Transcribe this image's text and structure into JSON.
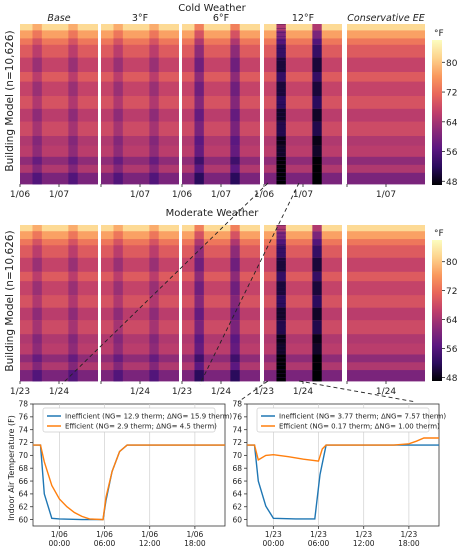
{
  "heatmaps": [
    {
      "title": "Cold Weather",
      "panels": [
        {
          "label": "Base",
          "italic": true,
          "ticks": [
            "1/06",
            "1/07"
          ]
        },
        {
          "label": "3°F",
          "italic": false,
          "ticks": [
            "",
            "1/07"
          ]
        },
        {
          "label": "6°F",
          "italic": false,
          "ticks": [
            "1/06",
            "1/07"
          ]
        },
        {
          "label": "12°F",
          "italic": false,
          "ticks": [
            "1/06",
            "1/07"
          ]
        },
        {
          "label": "Conservative EE",
          "italic": true,
          "ticks": [
            "",
            "1/07"
          ]
        }
      ]
    },
    {
      "title": "Moderate Weather",
      "panels": [
        {
          "label": "",
          "italic": false,
          "ticks": [
            "1/23",
            "1/24"
          ]
        },
        {
          "label": "",
          "italic": false,
          "ticks": [
            "",
            "1/24"
          ]
        },
        {
          "label": "",
          "italic": false,
          "ticks": [
            "1/23",
            "1/24"
          ]
        },
        {
          "label": "",
          "italic": false,
          "ticks": [
            "1/23",
            "1/24"
          ]
        },
        {
          "label": "",
          "italic": false,
          "ticks": [
            "",
            "1/24"
          ]
        }
      ]
    }
  ],
  "ylabel": "Building Model (n=10,626)",
  "colorbar": {
    "unit": "°F",
    "ticks": [
      48,
      56,
      64,
      72,
      80
    ],
    "range": [
      47,
      86
    ],
    "stops": [
      "#000004",
      "#2a0b5c",
      "#5a1780",
      "#8a2a78",
      "#c03f6b",
      "#e8665a",
      "#f9985d",
      "#fdd28c",
      "#fcfdbf"
    ]
  },
  "chart_data": [
    {
      "type": "line",
      "panel": "cold-detail",
      "xlabel": "",
      "ylabel": "Indoor Air Temperature (F)",
      "ylim": [
        59,
        78
      ],
      "yticks": [
        60,
        62,
        64,
        66,
        68,
        70,
        72,
        74,
        76,
        78
      ],
      "xlim": [
        -3.5,
        22
      ],
      "xticks": [
        {
          "value": 0,
          "label": "1/06\n00:00"
        },
        {
          "value": 6,
          "label": "1/06\n06:00"
        },
        {
          "value": 12,
          "label": "1/06\n12:00"
        },
        {
          "value": 18,
          "label": "1/06\n18:00"
        }
      ],
      "series": [
        {
          "name": "Inefficient (NG= 12.9 therm; ΔNG= 15.9 therm)",
          "color": "#1f77b4",
          "x": [
            -3.5,
            -2.5,
            -2.0,
            -1.0,
            0,
            3,
            5.8,
            6.2,
            7,
            8,
            9,
            10,
            11,
            12,
            22
          ],
          "values": [
            71.6,
            71.6,
            64,
            60.2,
            60.1,
            60,
            60,
            63,
            67.5,
            70.6,
            71.6,
            71.6,
            71.6,
            71.6,
            71.6
          ]
        },
        {
          "name": "Efficient (NG= 2.9 therm; ΔNG= 4.5 therm)",
          "color": "#ff7f0e",
          "x": [
            -3.5,
            -2.5,
            -2.0,
            -1.0,
            0,
            1,
            2,
            3,
            4,
            5.8,
            6.2,
            7,
            8,
            9,
            10,
            11,
            12,
            22
          ],
          "values": [
            71.6,
            71.6,
            69,
            65.3,
            63.2,
            62,
            61.1,
            60.5,
            60.1,
            60,
            63.5,
            67.5,
            70.6,
            71.6,
            71.6,
            71.6,
            71.6,
            71.6
          ]
        }
      ]
    },
    {
      "type": "line",
      "panel": "moderate-detail",
      "xlabel": "",
      "ylabel": "",
      "ylim": [
        59,
        78
      ],
      "yticks": [
        60,
        62,
        64,
        66,
        68,
        70,
        72,
        74,
        76,
        78
      ],
      "xlim": [
        -3.5,
        22
      ],
      "xticks": [
        {
          "value": 0,
          "label": "1/23\n00:00"
        },
        {
          "value": 6,
          "label": "1/23\n06:00"
        },
        {
          "value": 12,
          "label": "1/23\n12:00"
        },
        {
          "value": 18,
          "label": "1/23\n18:00"
        }
      ],
      "series": [
        {
          "name": "Inefficient (NG= 3.77 therm; ΔNG= 7.57 therm)",
          "color": "#1f77b4",
          "x": [
            -3.5,
            -2.5,
            -2.0,
            -1.0,
            0,
            3,
            5.5,
            6.2,
            7,
            8,
            22
          ],
          "values": [
            71.6,
            71.6,
            66,
            62.1,
            60.2,
            60.1,
            60.1,
            67,
            71.6,
            71.6,
            71.6
          ]
        },
        {
          "name": "Efficient (NG= 0.17 therm; ΔNG= 1.00 therm)",
          "color": "#ff7f0e",
          "x": [
            -3.5,
            -2.5,
            -2.0,
            -1.0,
            0,
            2,
            4,
            6,
            6.5,
            7,
            8,
            12,
            16,
            18,
            19,
            20,
            22
          ],
          "values": [
            71.6,
            71.6,
            69.3,
            70,
            70.1,
            69.8,
            69.4,
            69.1,
            71,
            71.6,
            71.6,
            71.6,
            71.6,
            71.8,
            72.2,
            72.7,
            72.7
          ]
        }
      ]
    }
  ]
}
